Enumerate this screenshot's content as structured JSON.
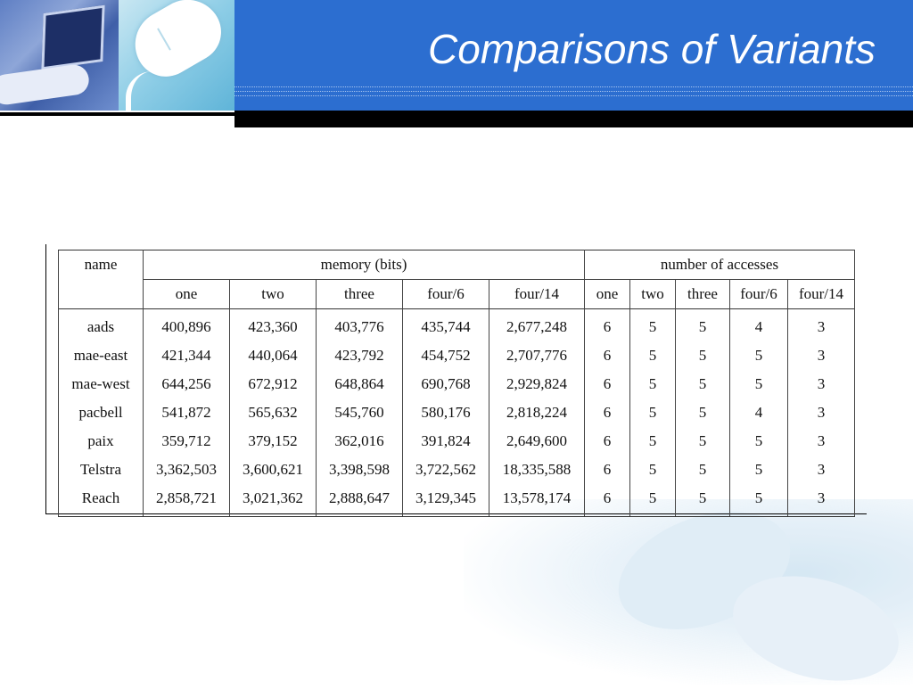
{
  "slide": {
    "title": "Comparisons of Variants"
  },
  "table": {
    "name_header": "name",
    "group_headers": [
      "memory (bits)",
      "number of accesses"
    ],
    "sub_headers": [
      "one",
      "two",
      "three",
      "four/6",
      "four/14",
      "one",
      "two",
      "three",
      "four/6",
      "four/14"
    ],
    "rows": [
      [
        "aads",
        "400,896",
        "423,360",
        "403,776",
        "435,744",
        "2,677,248",
        "6",
        "5",
        "5",
        "4",
        "3"
      ],
      [
        "mae-east",
        "421,344",
        "440,064",
        "423,792",
        "454,752",
        "2,707,776",
        "6",
        "5",
        "5",
        "5",
        "3"
      ],
      [
        "mae-west",
        "644,256",
        "672,912",
        "648,864",
        "690,768",
        "2,929,824",
        "6",
        "5",
        "5",
        "5",
        "3"
      ],
      [
        "pacbell",
        "541,872",
        "565,632",
        "545,760",
        "580,176",
        "2,818,224",
        "6",
        "5",
        "5",
        "4",
        "3"
      ],
      [
        "paix",
        "359,712",
        "379,152",
        "362,016",
        "391,824",
        "2,649,600",
        "6",
        "5",
        "5",
        "5",
        "3"
      ],
      [
        "Telstra",
        "3,362,503",
        "3,600,621",
        "3,398,598",
        "3,722,562",
        "18,335,588",
        "6",
        "5",
        "5",
        "5",
        "3"
      ],
      [
        "Reach",
        "2,858,721",
        "3,021,362",
        "2,888,647",
        "3,129,345",
        "13,578,174",
        "6",
        "5",
        "5",
        "5",
        "3"
      ]
    ]
  },
  "colors": {
    "header_blue": "#2c6ed0",
    "title_text": "#ffffff"
  }
}
